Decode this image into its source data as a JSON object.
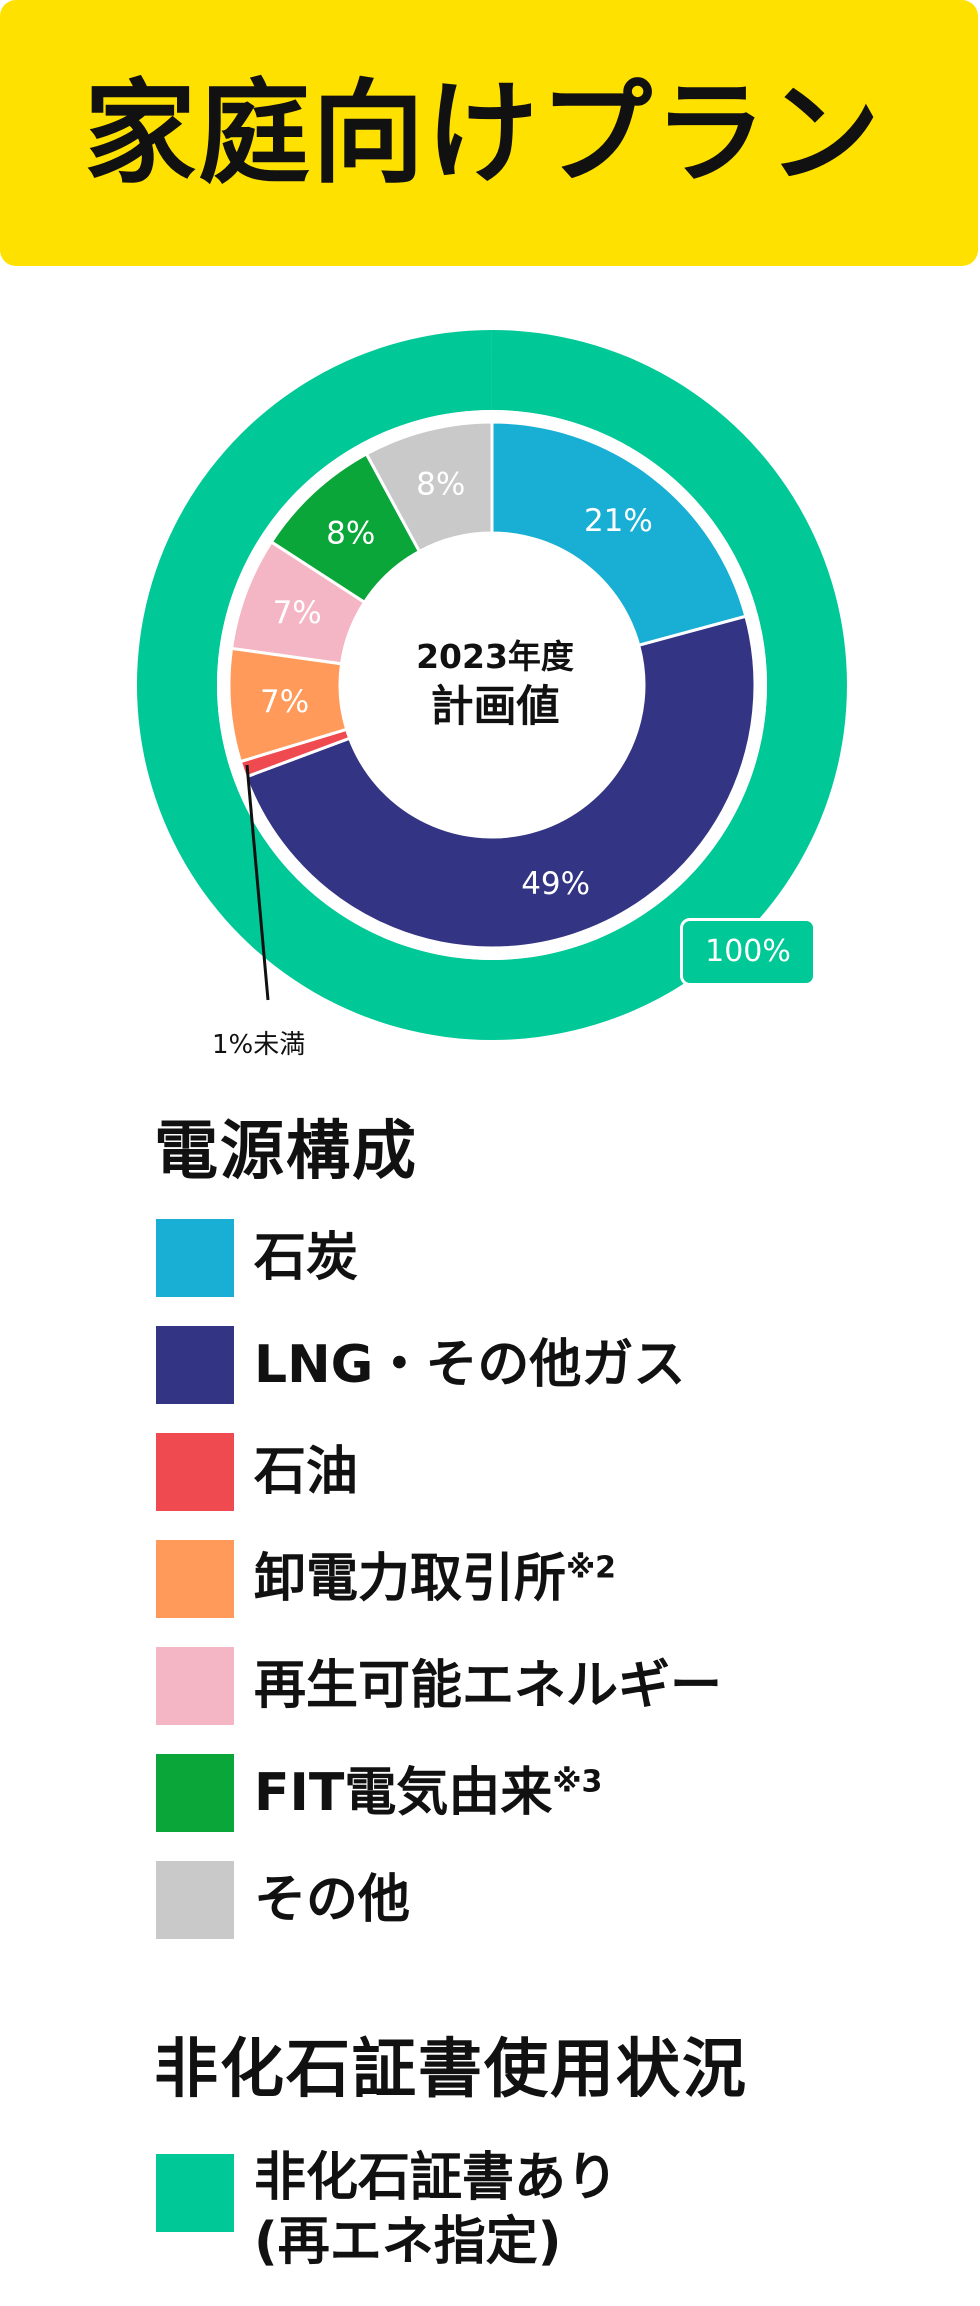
{
  "title": "家庭向けプラン",
  "chart_data": {
    "type": "pie",
    "center_year": "2023年度",
    "center_label": "計画値",
    "inner_ring": [
      {
        "name": "石炭",
        "value": 21,
        "label": "21%",
        "color": "#19AFD4"
      },
      {
        "name": "LNG・その他ガス",
        "value": 49,
        "label": "49%",
        "color": "#333484"
      },
      {
        "name": "石油",
        "value": 1,
        "label": "",
        "color": "#EE4A50"
      },
      {
        "name": "卸電力取引所",
        "value": 7,
        "label": "7%",
        "color": "#FF9A5A"
      },
      {
        "name": "再生可能エネルギー",
        "value": 7,
        "label": "7%",
        "color": "#F4B6C4"
      },
      {
        "name": "FIT電気由来",
        "value": 8,
        "label": "8%",
        "color": "#0AA63A"
      },
      {
        "name": "その他",
        "value": 8,
        "label": "8%",
        "color": "#C9C9C9"
      }
    ],
    "outer_ring": {
      "name": "非化石証書あり",
      "value": 100,
      "label": "100%",
      "color": "#00C896"
    },
    "annotation": "1%未満"
  },
  "legend": {
    "heading": "電源構成",
    "items": [
      {
        "label": "石炭",
        "note": "",
        "color": "#19AFD4"
      },
      {
        "label": "LNG・その他ガス",
        "note": "",
        "color": "#333484"
      },
      {
        "label": "石油",
        "note": "",
        "color": "#EE4A50"
      },
      {
        "label": "卸電力取引所",
        "note": "※2",
        "color": "#FF9A5A"
      },
      {
        "label": "再生可能エネルギー",
        "note": "",
        "color": "#F4B6C4"
      },
      {
        "label": "FIT電気由来",
        "note": "※3",
        "color": "#0AA63A"
      },
      {
        "label": "その他",
        "note": "",
        "color": "#C9C9C9"
      }
    ]
  },
  "certificate": {
    "heading": "非化石証書使用状況",
    "line1": "非化石証書あり",
    "line2": "(再エネ指定)",
    "color": "#00C896"
  }
}
